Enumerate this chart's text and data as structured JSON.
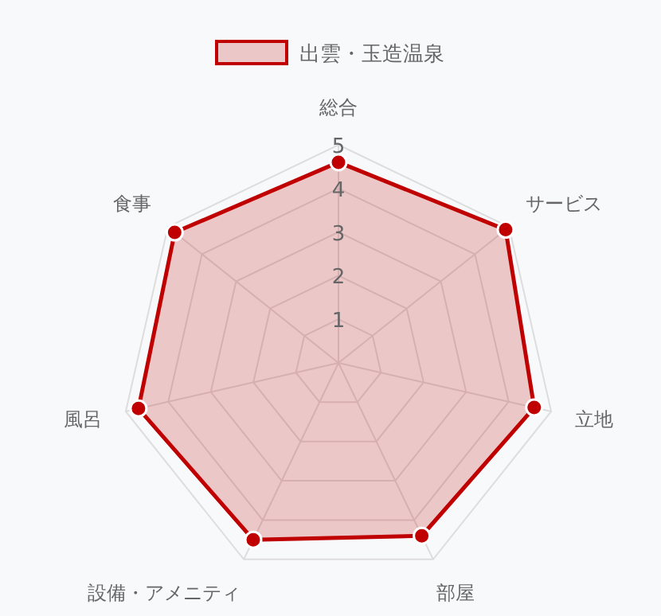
{
  "chart_data": {
    "type": "radar",
    "categories": [
      "総合",
      "サービス",
      "立地",
      "部屋",
      "設備・アメニティ",
      "風呂",
      "食事"
    ],
    "series": [
      {
        "name": "出雲・玉造温泉",
        "color": "#c00000",
        "values": [
          4.6,
          4.9,
          4.6,
          4.4,
          4.5,
          4.7,
          4.8
        ]
      }
    ],
    "ylim": [
      0,
      5
    ],
    "yticks": [
      1,
      2,
      3,
      4,
      5
    ],
    "legend": "top",
    "marker": "circle",
    "grid": true
  }
}
